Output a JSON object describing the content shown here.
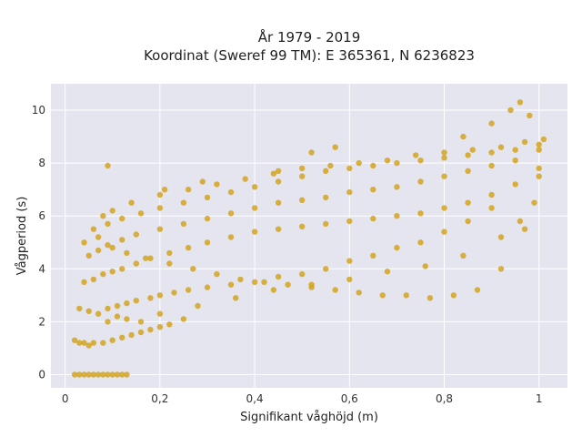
{
  "chart_data": {
    "type": "scatter",
    "title": "År 1979 - 2019",
    "subtitle": "Koordinat (Sweref 99 TM): E 365361, N 6236823",
    "xlabel": "Signifikant våghöjd (m)",
    "ylabel": "Vågperiod (s)",
    "xlim": [
      -0.03,
      1.06
    ],
    "ylim": [
      -0.5,
      11
    ],
    "x_ticks": [
      0,
      0.2,
      0.4,
      0.6,
      0.8,
      1
    ],
    "x_tick_labels": [
      "0",
      "0,2",
      "0,4",
      "0,6",
      "0,8",
      "1"
    ],
    "y_ticks": [
      0,
      2,
      4,
      6,
      8,
      10
    ],
    "y_tick_labels": [
      "0",
      "2",
      "4",
      "6",
      "8",
      "10"
    ],
    "grid": true,
    "colors": {
      "marker": "#d4a520",
      "plot_bg": "#e5e5ef",
      "grid": "#ffffff"
    },
    "series": [
      {
        "x": [
          0.02,
          0.03,
          0.04,
          0.05,
          0.06,
          0.07,
          0.08,
          0.09,
          0.1,
          0.11,
          0.12,
          0.13,
          0.02,
          0.03,
          0.04,
          0.05,
          0.06,
          0.08,
          0.1,
          0.12,
          0.14,
          0.16,
          0.18,
          0.2,
          0.22,
          0.25,
          0.03,
          0.05,
          0.07,
          0.09,
          0.11,
          0.13,
          0.15,
          0.18,
          0.2,
          0.23,
          0.26,
          0.3,
          0.35,
          0.4,
          0.45,
          0.5,
          0.55,
          0.6,
          0.65,
          0.7,
          0.75,
          0.8,
          0.85,
          0.9,
          0.04,
          0.06,
          0.08,
          0.1,
          0.12,
          0.15,
          0.18,
          0.22,
          0.26,
          0.3,
          0.35,
          0.4,
          0.45,
          0.5,
          0.55,
          0.6,
          0.65,
          0.7,
          0.75,
          0.8,
          0.85,
          0.9,
          0.95,
          1.0,
          0.05,
          0.07,
          0.09,
          0.12,
          0.15,
          0.2,
          0.25,
          0.3,
          0.35,
          0.4,
          0.45,
          0.5,
          0.55,
          0.6,
          0.65,
          0.7,
          0.75,
          0.8,
          0.85,
          0.9,
          0.95,
          1.0,
          0.06,
          0.09,
          0.12,
          0.16,
          0.2,
          0.25,
          0.3,
          0.35,
          0.4,
          0.45,
          0.5,
          0.55,
          0.6,
          0.65,
          0.7,
          0.75,
          0.8,
          0.85,
          0.9,
          0.95,
          1.0,
          1.01,
          0.08,
          0.1,
          0.14,
          0.2,
          0.26,
          0.32,
          0.38,
          0.44,
          0.5,
          0.56,
          0.62,
          0.68,
          0.74,
          0.8,
          0.86,
          0.92,
          0.97,
          0.09,
          0.11,
          0.13,
          0.16,
          0.2,
          0.28,
          0.36,
          0.44,
          0.52,
          0.6,
          0.68,
          0.76,
          0.84,
          0.92,
          0.96,
          0.99,
          1.0,
          0.04,
          0.07,
          0.1,
          0.13,
          0.17,
          0.22,
          0.27,
          0.32,
          0.37,
          0.42,
          0.47,
          0.52,
          0.57,
          0.62,
          0.67,
          0.72,
          0.77,
          0.82,
          0.87,
          0.92,
          0.97,
          0.09,
          0.21,
          0.29,
          0.45,
          0.52,
          0.57,
          0.84,
          0.9,
          0.94,
          0.96,
          0.98
        ],
        "y": [
          0,
          0,
          0,
          0,
          0,
          0,
          0,
          0,
          0,
          0,
          0,
          0,
          1.3,
          1.2,
          1.2,
          1.1,
          1.2,
          1.2,
          1.3,
          1.4,
          1.5,
          1.6,
          1.7,
          1.8,
          1.9,
          2.1,
          2.5,
          2.4,
          2.3,
          2.5,
          2.6,
          2.7,
          2.8,
          2.9,
          3.0,
          3.1,
          3.2,
          3.3,
          3.4,
          3.5,
          3.7,
          3.8,
          4.0,
          4.3,
          4.5,
          4.8,
          5.0,
          5.4,
          5.8,
          6.3,
          3.5,
          3.6,
          3.8,
          3.9,
          4.0,
          4.2,
          4.4,
          4.6,
          4.8,
          5.0,
          5.2,
          5.4,
          5.5,
          5.6,
          5.7,
          5.8,
          5.9,
          6.0,
          6.1,
          6.3,
          6.5,
          6.8,
          7.2,
          7.8,
          4.5,
          4.7,
          4.9,
          5.1,
          5.3,
          5.5,
          5.7,
          5.9,
          6.1,
          6.3,
          6.5,
          6.6,
          6.7,
          6.9,
          7.0,
          7.1,
          7.3,
          7.5,
          7.7,
          7.9,
          8.1,
          8.5,
          5.5,
          5.7,
          5.9,
          6.1,
          6.3,
          6.5,
          6.7,
          6.9,
          7.1,
          7.3,
          7.5,
          7.7,
          7.8,
          7.9,
          8.0,
          8.1,
          8.2,
          8.3,
          8.4,
          8.5,
          8.7,
          8.9,
          6.0,
          6.2,
          6.5,
          6.8,
          7.0,
          7.2,
          7.4,
          7.6,
          7.8,
          7.9,
          8.0,
          8.1,
          8.3,
          8.4,
          8.5,
          8.6,
          8.8,
          2.0,
          2.2,
          2.1,
          2.0,
          2.3,
          2.6,
          2.9,
          3.2,
          3.4,
          3.6,
          3.9,
          4.1,
          4.5,
          5.2,
          5.8,
          6.5,
          7.5,
          5.0,
          5.2,
          4.8,
          4.6,
          4.4,
          4.2,
          4.0,
          3.8,
          3.6,
          3.5,
          3.4,
          3.3,
          3.2,
          3.1,
          3.0,
          3.0,
          2.9,
          3.0,
          3.2,
          4.0,
          5.5,
          7.9,
          7.0,
          7.3,
          7.7,
          8.4,
          8.6,
          9.0,
          9.5,
          10.0,
          10.3,
          9.8
        ]
      }
    ]
  }
}
